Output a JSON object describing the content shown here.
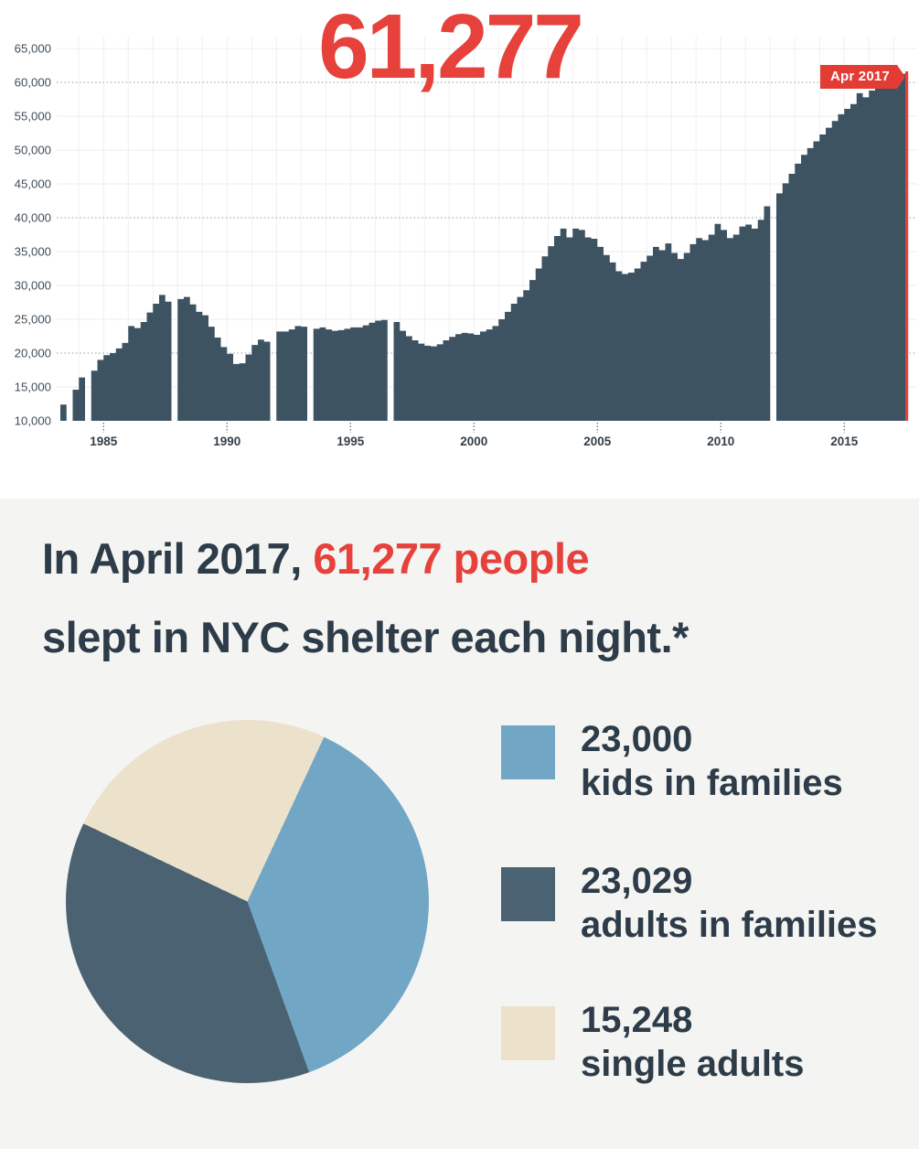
{
  "colors": {
    "red": "#e6413b",
    "flag_red": "#e23c35",
    "bar": "#3d5362",
    "dark_text": "#2d3c48",
    "grid_light": "#e9edef",
    "grid_dotted": "#98a2a9",
    "axis_text": "#414e59",
    "section_background": "#f4f4f3"
  },
  "top_chart": {
    "headline_value": "61,277",
    "flag_label": "Apr 2017",
    "y_tick_labels": [
      "65,000",
      "60,000",
      "55,000",
      "50,000",
      "45,000",
      "40,000",
      "35,000",
      "30,000",
      "25,000",
      "20,000",
      "15,000",
      "10,000"
    ],
    "x_tick_years": [
      1985,
      1990,
      1995,
      2000,
      2005,
      2010,
      2015
    ]
  },
  "summary": {
    "line1_dark": "In April 2017,",
    "line1_red": "61,277 people",
    "line2": "slept in NYC shelter each night.*"
  },
  "legend": {
    "items": [
      {
        "value": "23,000",
        "label": "kids in families",
        "color": "#72a6c5"
      },
      {
        "value": "23,029",
        "label": "adults in families",
        "color": "#4b6272"
      },
      {
        "value": "15,248",
        "label": "single adults",
        "color": "#ece1ca"
      }
    ]
  },
  "chart_data": [
    {
      "type": "bar",
      "description": "People sleeping in NYC shelters each night, quarterly, mid-1983 through April 2017; null = missing data gap",
      "x_start_year": 1983.25,
      "points_per_year": 4,
      "ylim": [
        10000,
        66500
      ],
      "x_tick_labels": [
        "1985",
        "1990",
        "1995",
        "2000",
        "2005",
        "2010",
        "2015"
      ],
      "y_tick_values": [
        10000,
        15000,
        20000,
        25000,
        30000,
        35000,
        40000,
        45000,
        50000,
        55000,
        60000,
        65000
      ],
      "dotted_gridlines": [
        20000,
        40000,
        60000
      ],
      "annotation": {
        "label": "Apr 2017",
        "value": 61277
      },
      "values": [
        12400,
        null,
        14600,
        16400,
        null,
        17400,
        19000,
        19700,
        20000,
        20700,
        21500,
        24000,
        23700,
        24600,
        26000,
        27300,
        28600,
        27600,
        null,
        28000,
        28300,
        27200,
        26100,
        25600,
        23900,
        22300,
        20900,
        19900,
        18400,
        18500,
        19800,
        21200,
        22000,
        21700,
        null,
        23200,
        23200,
        23500,
        24000,
        23900,
        null,
        23600,
        23800,
        23500,
        23300,
        23400,
        23600,
        23800,
        23800,
        24100,
        24500,
        24800,
        24900,
        null,
        24600,
        23300,
        22500,
        21900,
        21400,
        21100,
        21000,
        21300,
        21900,
        22400,
        22800,
        23000,
        22900,
        22700,
        23200,
        23500,
        24000,
        25000,
        26100,
        27300,
        28300,
        29300,
        30800,
        32500,
        34300,
        35800,
        37300,
        38400,
        37100,
        38400,
        38200,
        37100,
        36900,
        35700,
        34500,
        33400,
        32100,
        31700,
        31900,
        32500,
        33500,
        34400,
        35700,
        35200,
        36200,
        34800,
        33900,
        34800,
        36100,
        37000,
        36700,
        37500,
        39100,
        38200,
        37000,
        37500,
        38700,
        39000,
        38400,
        39700,
        41700,
        null,
        43600,
        45100,
        46500,
        48000,
        49300,
        50300,
        51300,
        52300,
        53300,
        54300,
        55300,
        56100,
        56800,
        58400,
        57800,
        58800,
        59400,
        59800,
        60300,
        61000,
        61277
      ]
    },
    {
      "type": "pie",
      "description": "Who slept in NYC shelter each night, April 2017",
      "labels": [
        "kids in families",
        "adults in families",
        "single adults"
      ],
      "values": [
        23000,
        23029,
        15248
      ],
      "colors": [
        "#72a6c5",
        "#4b6272",
        "#ece1ca"
      ],
      "total": 61277,
      "start_angle_deg": 25,
      "legend_position": "right"
    }
  ]
}
